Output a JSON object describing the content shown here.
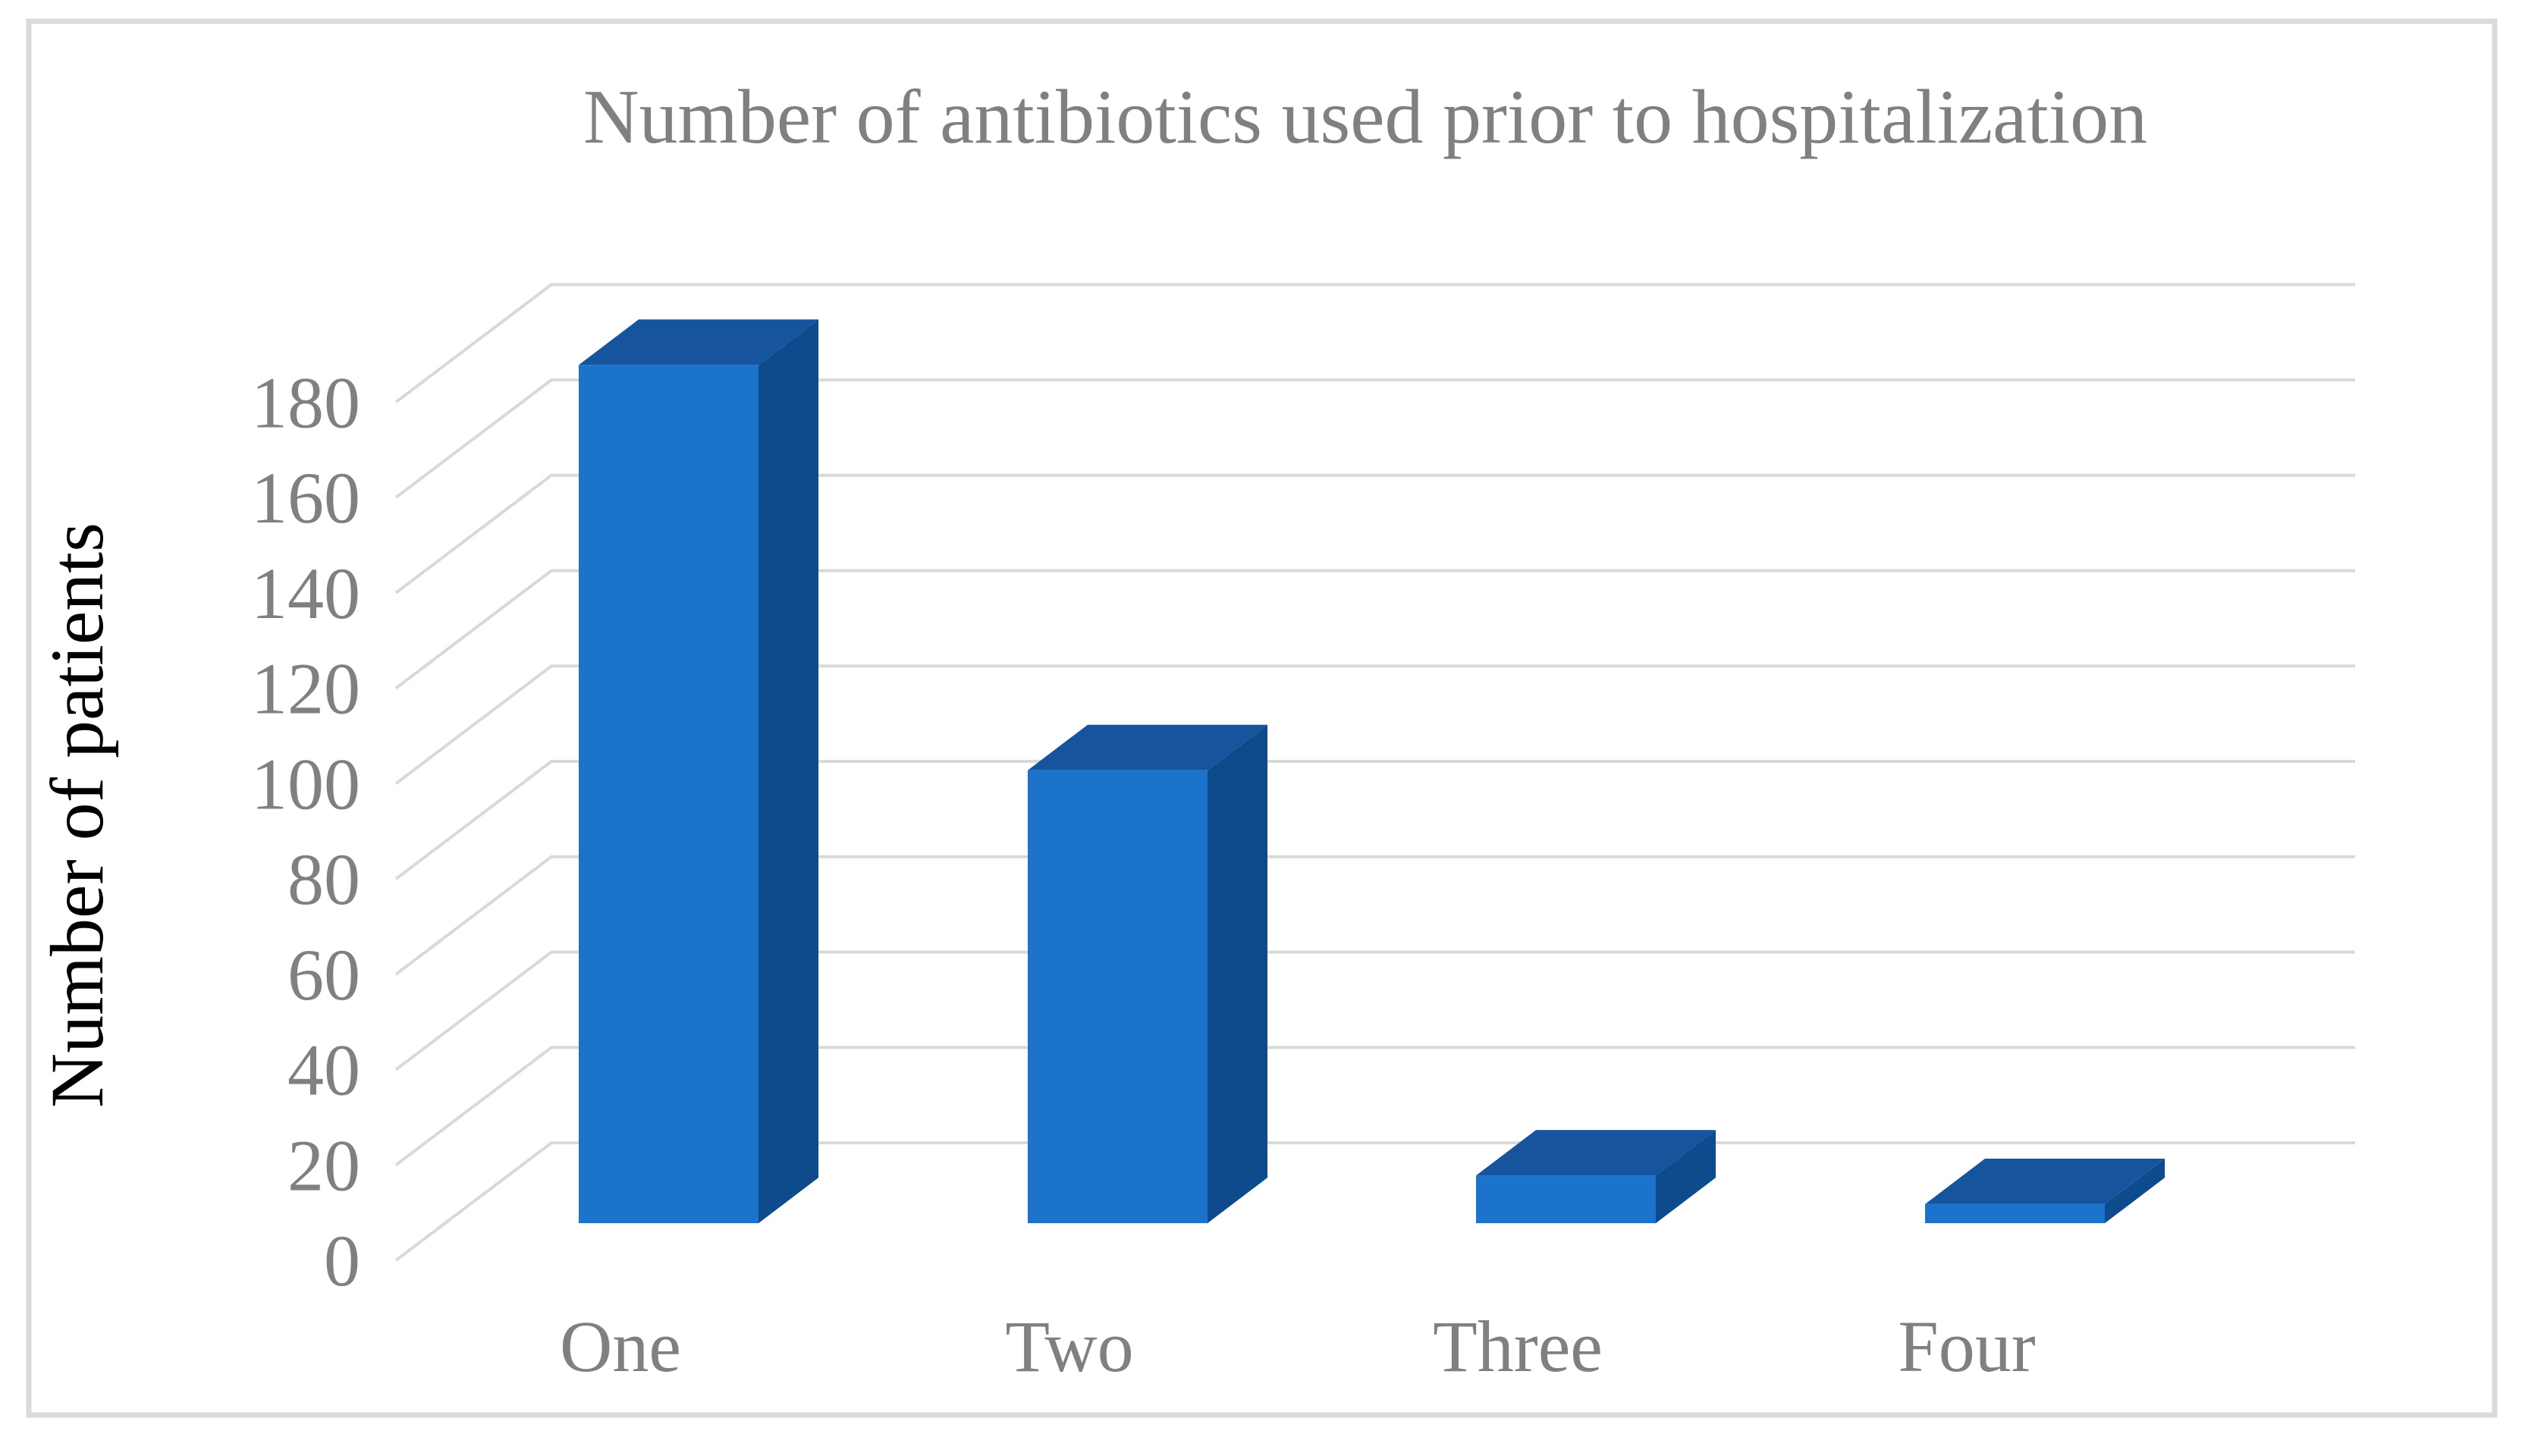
{
  "chart_data": {
    "type": "bar",
    "style": "3d-column",
    "title": "Number of antibiotics used prior to hospitalization",
    "ylabel": "Number of patients",
    "xlabel": "",
    "categories": [
      "One",
      "Two",
      "Three",
      "Four"
    ],
    "values": [
      180,
      95,
      10,
      4
    ],
    "yticks": [
      0,
      20,
      40,
      60,
      80,
      100,
      120,
      140,
      160,
      180
    ],
    "ylim": [
      0,
      180
    ],
    "grid": true,
    "legend": false,
    "colors": {
      "bar_front": "#1B73CB",
      "bar_top": "#17549E",
      "bar_side": "#0D4B8C",
      "gridline": "#D9D9D9",
      "frame_border": "#DBDBDB",
      "title_text": "#808080",
      "tick_text": "#808080",
      "category_text": "#808080",
      "axis_title_text": "#000000",
      "background": "#FFFFFF"
    }
  }
}
